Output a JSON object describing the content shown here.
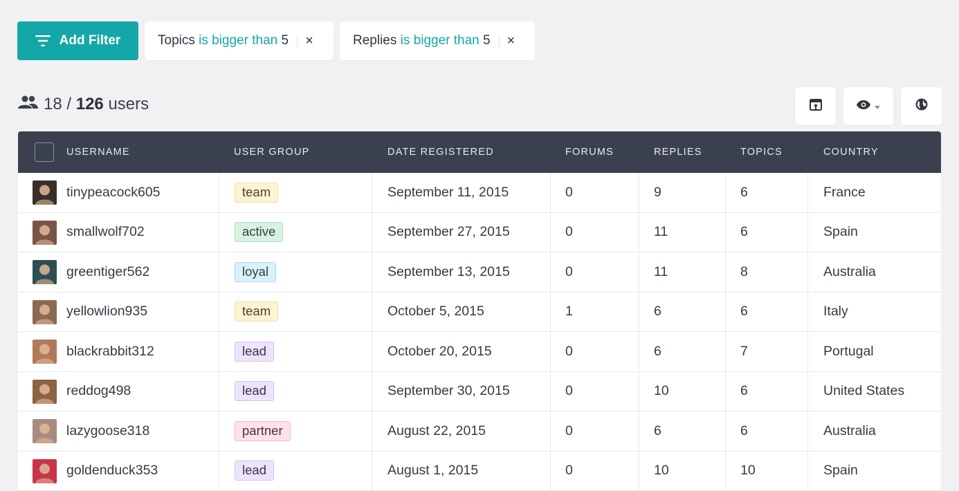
{
  "toolbar": {
    "add_filter_label": "Add Filter",
    "icons": {
      "filter": "filter-icon",
      "export": "export-icon",
      "columns": "eye-icon",
      "language": "globe-icon"
    }
  },
  "filters": [
    {
      "field": "Topics",
      "operator": "is bigger than",
      "value": "5",
      "close": "×"
    },
    {
      "field": "Replies",
      "operator": "is bigger than",
      "value": "5",
      "close": "×"
    }
  ],
  "count": {
    "shown": "18",
    "separator": "/",
    "total": "126",
    "unit": "users"
  },
  "table": {
    "headers": {
      "username": "USERNAME",
      "group": "USER GROUP",
      "date": "DATE REGISTERED",
      "forums": "FORUMS",
      "replies": "REPLIES",
      "topics": "TOPICS",
      "country": "COUNTRY"
    },
    "rows": [
      {
        "username": "tinypeacock605",
        "group": "team",
        "date": "September 11, 2015",
        "forums": "0",
        "replies": "9",
        "topics": "6",
        "country": "France",
        "avatar_color": "#3a2e2a"
      },
      {
        "username": "smallwolf702",
        "group": "active",
        "date": "September 27, 2015",
        "forums": "0",
        "replies": "11",
        "topics": "6",
        "country": "Spain",
        "avatar_color": "#7a5446"
      },
      {
        "username": "greentiger562",
        "group": "loyal",
        "date": "September 13, 2015",
        "forums": "0",
        "replies": "11",
        "topics": "8",
        "country": "Australia",
        "avatar_color": "#2f4e52"
      },
      {
        "username": "yellowlion935",
        "group": "team",
        "date": "October 5, 2015",
        "forums": "1",
        "replies": "6",
        "topics": "6",
        "country": "Italy",
        "avatar_color": "#8b6a52"
      },
      {
        "username": "blackrabbit312",
        "group": "lead",
        "date": "October 20, 2015",
        "forums": "0",
        "replies": "6",
        "topics": "7",
        "country": "Portugal",
        "avatar_color": "#b07a5a"
      },
      {
        "username": "reddog498",
        "group": "lead",
        "date": "September 30, 2015",
        "forums": "0",
        "replies": "10",
        "topics": "6",
        "country": "United States",
        "avatar_color": "#8d6240"
      },
      {
        "username": "lazygoose318",
        "group": "partner",
        "date": "August 22, 2015",
        "forums": "0",
        "replies": "6",
        "topics": "6",
        "country": "Australia",
        "avatar_color": "#a88a80"
      },
      {
        "username": "goldenduck353",
        "group": "lead",
        "date": "August 1, 2015",
        "forums": "0",
        "replies": "10",
        "topics": "10",
        "country": "Spain",
        "avatar_color": "#c8344a"
      }
    ]
  },
  "colors": {
    "accent": "#14a7a8",
    "header_bg": "#3a404d",
    "page_bg": "#f1f1f4"
  }
}
